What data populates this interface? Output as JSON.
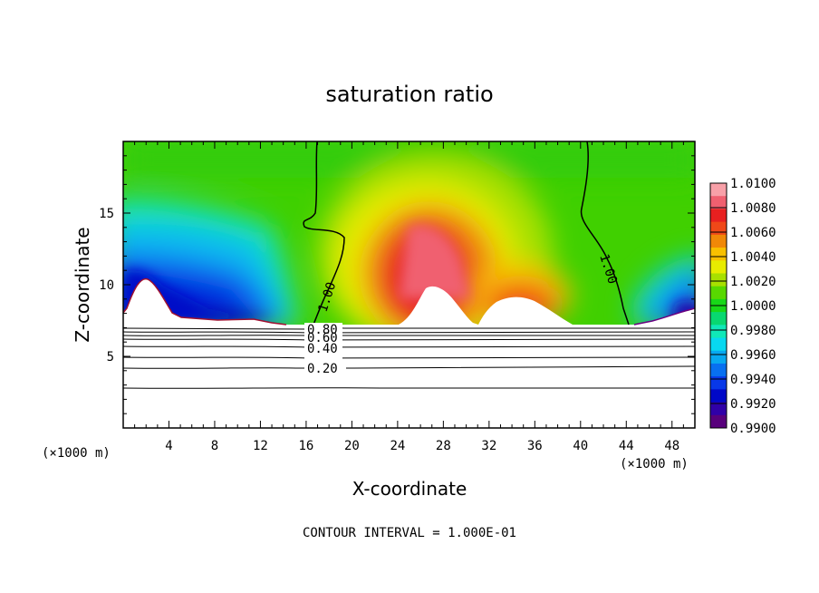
{
  "chart_data": {
    "type": "heatmap",
    "title": "saturation ratio",
    "xlabel": "X-coordinate",
    "ylabel": "Z-coordinate",
    "x_unit": "(×1000 m)",
    "y_unit": "(×1000 m)",
    "xlim": [
      0,
      50
    ],
    "ylim": [
      0,
      20
    ],
    "x_ticks": [
      4,
      8,
      12,
      16,
      20,
      24,
      28,
      32,
      36,
      40,
      44,
      48
    ],
    "y_ticks": [
      5,
      10,
      15
    ],
    "colorbar": {
      "min": 0.99,
      "max": 1.01,
      "labels": [
        "1.0100",
        "1.0080",
        "1.0060",
        "1.0040",
        "1.0020",
        "1.0000",
        "0.9980",
        "0.9960",
        "0.9940",
        "0.9920",
        "0.9900"
      ],
      "colors": [
        "#f8a0a8",
        "#f06070",
        "#e82020",
        "#f04818",
        "#f08808",
        "#f8c000",
        "#e8ec00",
        "#a8e000",
        "#58d800",
        "#18d818",
        "#08d870",
        "#10e8b8",
        "#08d8f0",
        "#08a8f0",
        "#0870f0",
        "#0838e8",
        "#0008c8",
        "#3000a8",
        "#58007c"
      ]
    },
    "contour_lines": [
      {
        "label": "1.00",
        "x": 17.2
      },
      {
        "label": "1.00",
        "x": 41.8
      },
      {
        "label": "0.80"
      },
      {
        "label": "0.60"
      },
      {
        "label": "0.40"
      },
      {
        "label": "0.20"
      }
    ],
    "terrain_peaks": [
      {
        "x": 2.2,
        "z": 10.4
      },
      {
        "x": 25.5,
        "z": 12.0
      },
      {
        "x": 34.0,
        "z": 9.6
      },
      {
        "x": 47.0,
        "z": 8.5
      }
    ],
    "note": "CONTOUR INTERVAL = 1.000E-01"
  }
}
